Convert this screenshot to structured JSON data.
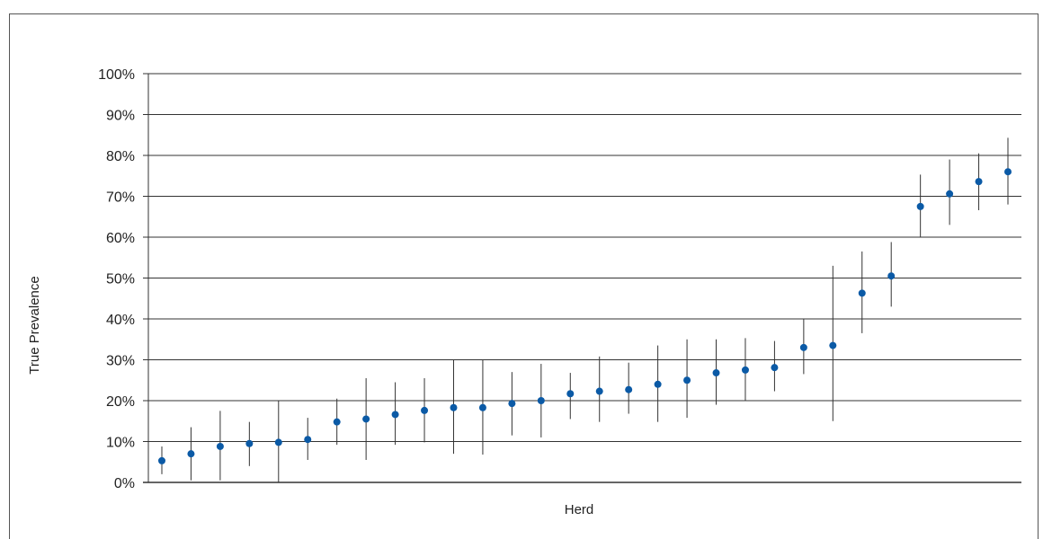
{
  "chart_data": {
    "type": "scatter",
    "title": "",
    "xlabel": "Herd",
    "ylabel": "True Prevalence",
    "ylim": [
      0,
      100
    ],
    "yticks": [
      "0%",
      "10%",
      "20%",
      "30%",
      "40%",
      "50%",
      "60%",
      "70%",
      "80%",
      "90%",
      "100%"
    ],
    "grid": "horizontal",
    "colors": {
      "point": "#0b5aa6",
      "errorbar": "#333333",
      "grid": "#333333"
    },
    "series": [
      {
        "points": [
          {
            "y": 5.3,
            "low": 2.0,
            "high": 8.8
          },
          {
            "y": 7.0,
            "low": 0.5,
            "high": 13.5
          },
          {
            "y": 8.8,
            "low": 0.5,
            "high": 17.5
          },
          {
            "y": 9.5,
            "low": 4.0,
            "high": 14.8
          },
          {
            "y": 9.8,
            "low": 0.0,
            "high": 20.0
          },
          {
            "y": 10.5,
            "low": 5.5,
            "high": 15.8
          },
          {
            "y": 14.8,
            "low": 9.2,
            "high": 20.5
          },
          {
            "y": 15.5,
            "low": 5.5,
            "high": 25.5
          },
          {
            "y": 16.6,
            "low": 9.2,
            "high": 24.5
          },
          {
            "y": 17.6,
            "low": 9.8,
            "high": 25.5
          },
          {
            "y": 18.3,
            "low": 7.0,
            "high": 30.0
          },
          {
            "y": 18.3,
            "low": 6.8,
            "high": 30.0
          },
          {
            "y": 19.3,
            "low": 11.5,
            "high": 27.0
          },
          {
            "y": 20.0,
            "low": 11.0,
            "high": 29.0
          },
          {
            "y": 21.7,
            "low": 15.5,
            "high": 26.8
          },
          {
            "y": 22.3,
            "low": 14.8,
            "high": 30.8
          },
          {
            "y": 22.7,
            "low": 16.8,
            "high": 29.3
          },
          {
            "y": 24.0,
            "low": 14.8,
            "high": 33.5
          },
          {
            "y": 25.0,
            "low": 15.8,
            "high": 35.0
          },
          {
            "y": 26.8,
            "low": 19.0,
            "high": 35.0
          },
          {
            "y": 27.5,
            "low": 20.0,
            "high": 35.3
          },
          {
            "y": 28.1,
            "low": 22.3,
            "high": 34.6
          },
          {
            "y": 33.0,
            "low": 26.5,
            "high": 40.0
          },
          {
            "y": 33.5,
            "low": 15.0,
            "high": 53.0
          },
          {
            "y": 46.3,
            "low": 36.5,
            "high": 56.5
          },
          {
            "y": 50.5,
            "low": 43.0,
            "high": 58.8
          },
          {
            "y": 67.5,
            "low": 60.0,
            "high": 75.3
          },
          {
            "y": 70.6,
            "low": 63.0,
            "high": 79.0
          },
          {
            "y": 73.6,
            "low": 66.6,
            "high": 80.5
          },
          {
            "y": 76.0,
            "low": 68.0,
            "high": 84.3
          }
        ]
      }
    ]
  }
}
